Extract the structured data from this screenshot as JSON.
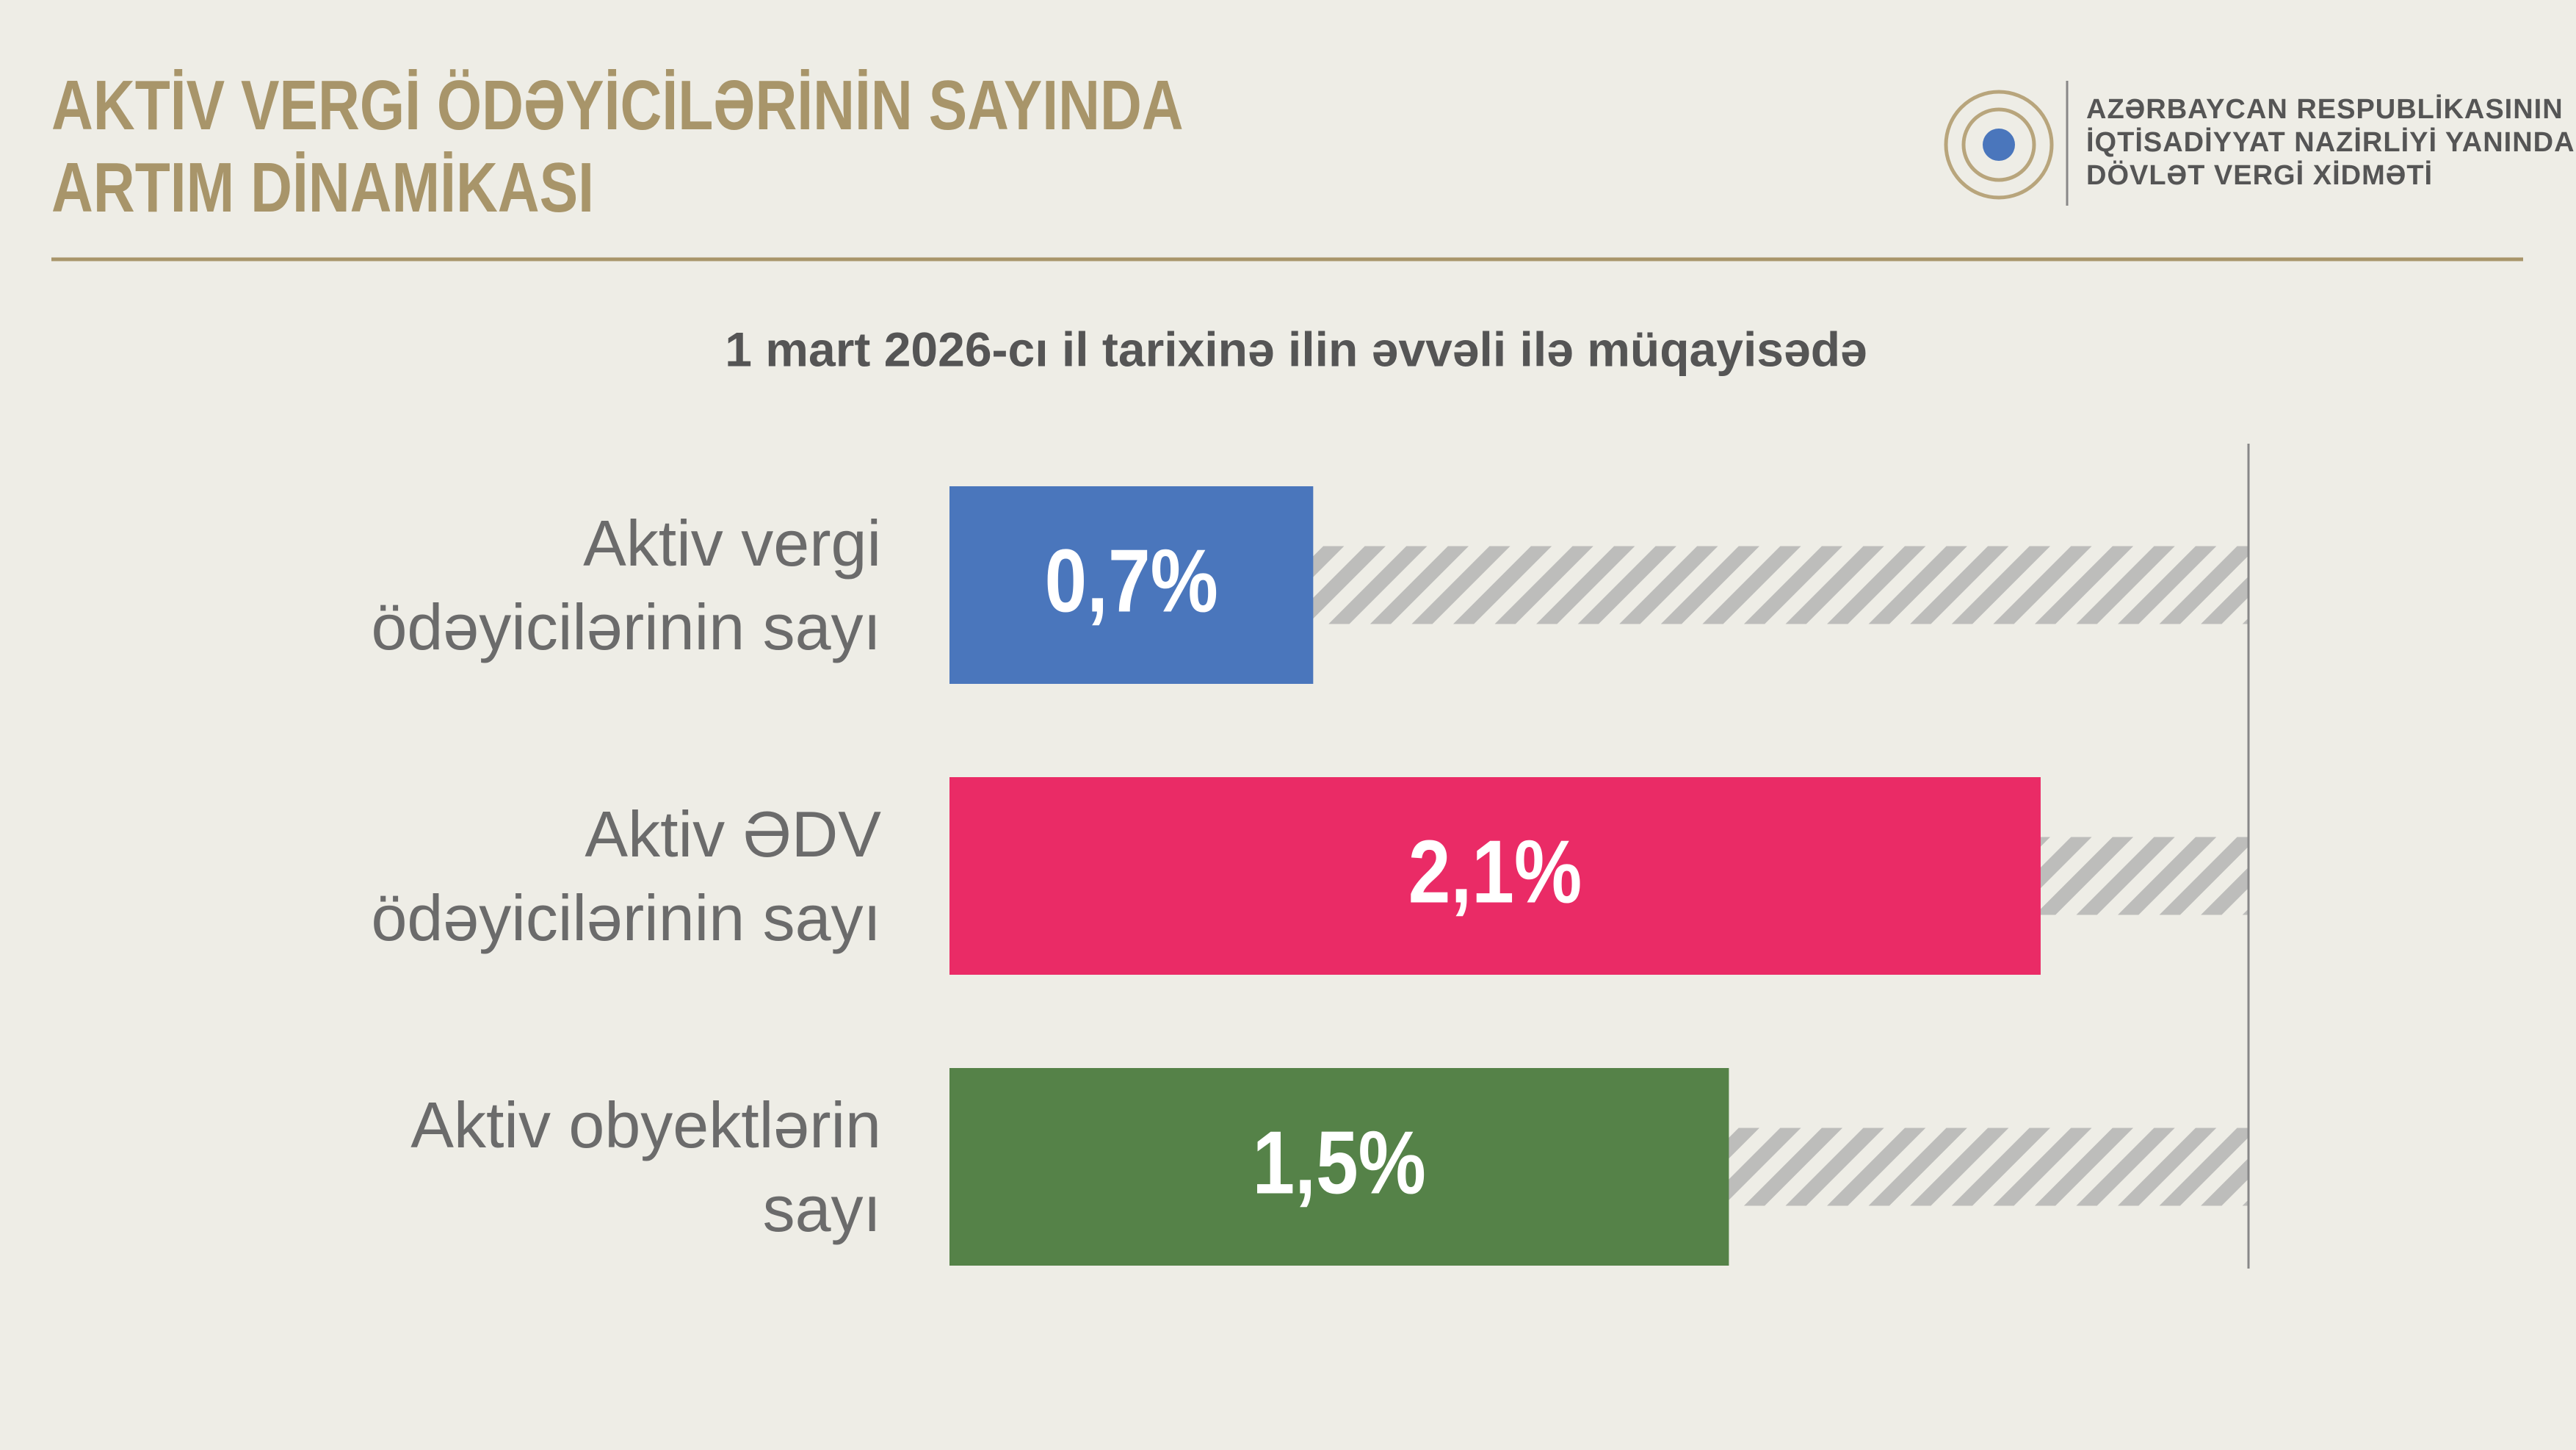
{
  "chart_data": {
    "type": "hbar",
    "title": "AKTİV VERGİ ÖDƏYİCİLƏRİNİN SAYINDA ARTIM DİNAMİKASI",
    "subtitle": "1 mart 2026-cı il tarixinə ilin əvvəli ilə müqayisədə",
    "categories": [
      "Aktiv vergi ödəyicilərinin sayı",
      "Aktiv ƏDV ödəyicilərinin sayı",
      "Aktiv obyektlərin sayı"
    ],
    "values": [
      0.7,
      2.1,
      1.5
    ],
    "value_labels": [
      "0,7%",
      "2,1%",
      "1,5%"
    ],
    "colors": [
      "#4a76bc",
      "#ea2b66",
      "#558248"
    ],
    "xlim": [
      0,
      2.5
    ]
  },
  "header": {
    "org_lines": [
      "AZƏRBAYCAN RESPUBLİKASININ",
      "İQTİSADİYYAT NAZİRLİYİ YANINDA",
      "DÖVLƏT VERGİ XİDMƏTİ"
    ]
  }
}
